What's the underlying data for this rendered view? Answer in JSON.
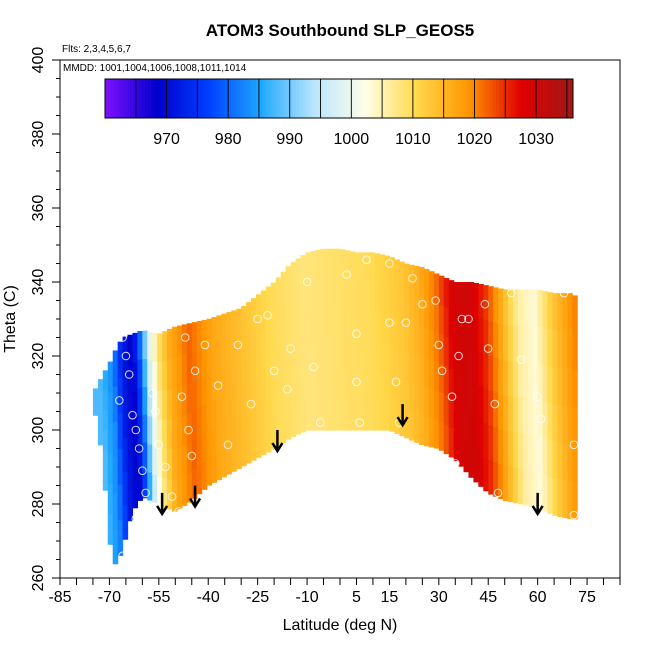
{
  "chart_data": {
    "type": "heatmap",
    "title": "ATOM3 Southbound SLP_GEOS5",
    "subtitle_flights": "Flts: 2,3,4,5,6,7",
    "subtitle_dates": "MMDD: 1001,1004,1006,1008,1011,1014",
    "xlabel": "Latitude (deg N)",
    "ylabel": "Theta (C)",
    "xlim": [
      -85,
      85
    ],
    "ylim": [
      260,
      400
    ],
    "x_ticks": [
      -85,
      -70,
      -55,
      -40,
      -25,
      -10,
      5,
      15,
      30,
      45,
      60,
      75
    ],
    "y_ticks": [
      260,
      280,
      300,
      320,
      340,
      360,
      380,
      400
    ],
    "colorbar": {
      "range": [
        960,
        1036
      ],
      "ticks": [
        970,
        980,
        990,
        1000,
        1010,
        1020,
        1030
      ],
      "colors": [
        "#7f10ff",
        "#0000cc",
        "#0040ff",
        "#1fa8ff",
        "#b8e4ff",
        "#ffffe8",
        "#ffd84a",
        "#ff9500",
        "#e00000",
        "#a01818"
      ]
    },
    "field_slp_by_latitude": {
      "lat": [
        -72,
        -68,
        -65,
        -62,
        -60,
        -57,
        -54,
        -51,
        -48,
        -45,
        -42,
        -38,
        -30,
        -20,
        -10,
        0,
        10,
        20,
        25,
        30,
        35,
        40,
        45,
        50,
        55,
        60,
        65,
        70,
        72
      ],
      "slp": [
        988,
        983,
        972,
        968,
        978,
        998,
        1009,
        1016,
        1019,
        1022,
        1020,
        1017,
        1014,
        1010,
        1008,
        1009,
        1010,
        1013,
        1016,
        1021,
        1029,
        1030,
        1025,
        1016,
        1006,
        1003,
        1012,
        1018,
        1020
      ]
    },
    "coverage_envelope": {
      "lat": [
        -75,
        -72,
        -70,
        -68,
        -66,
        -63,
        -60,
        -55,
        -50,
        -45,
        -40,
        -30,
        -20,
        -15,
        -10,
        -5,
        0,
        5,
        10,
        15,
        20,
        25,
        30,
        35,
        40,
        45,
        50,
        55,
        60,
        65,
        70,
        72
      ],
      "theta_top": [
        310,
        315,
        318,
        322,
        325,
        326,
        327,
        326,
        328,
        329,
        330,
        333,
        340,
        345,
        348,
        349,
        349,
        348,
        348,
        347,
        345,
        344,
        342,
        340,
        340,
        339,
        338,
        338,
        338,
        337,
        337,
        336
      ],
      "theta_bottom": [
        308,
        292,
        270,
        263,
        268,
        278,
        282,
        280,
        278,
        281,
        285,
        290,
        295,
        298,
        300,
        300,
        300,
        300,
        300,
        300,
        298,
        296,
        295,
        292,
        287,
        283,
        281,
        280,
        279,
        277,
        276,
        276
      ]
    },
    "observations": [
      {
        "lat": -66,
        "theta": 325
      },
      {
        "lat": -65,
        "theta": 320
      },
      {
        "lat": -64,
        "theta": 315
      },
      {
        "lat": -67,
        "theta": 308
      },
      {
        "lat": -63,
        "theta": 304
      },
      {
        "lat": -62,
        "theta": 300
      },
      {
        "lat": -61,
        "theta": 295
      },
      {
        "lat": -60,
        "theta": 289
      },
      {
        "lat": -59,
        "theta": 283
      },
      {
        "lat": -62,
        "theta": 276
      },
      {
        "lat": -66,
        "theta": 266
      },
      {
        "lat": -57,
        "theta": 310
      },
      {
        "lat": -56,
        "theta": 305
      },
      {
        "lat": -55,
        "theta": 296
      },
      {
        "lat": -53,
        "theta": 290
      },
      {
        "lat": -51,
        "theta": 282
      },
      {
        "lat": -49,
        "theta": 278
      },
      {
        "lat": -47,
        "theta": 325
      },
      {
        "lat": -44,
        "theta": 316
      },
      {
        "lat": -48,
        "theta": 309
      },
      {
        "lat": -46,
        "theta": 300
      },
      {
        "lat": -45,
        "theta": 293
      },
      {
        "lat": -41,
        "theta": 323
      },
      {
        "lat": -37,
        "theta": 312
      },
      {
        "lat": -34,
        "theta": 296
      },
      {
        "lat": -31,
        "theta": 323
      },
      {
        "lat": -27,
        "theta": 307
      },
      {
        "lat": -25,
        "theta": 330
      },
      {
        "lat": -22,
        "theta": 331
      },
      {
        "lat": -20,
        "theta": 316
      },
      {
        "lat": -16,
        "theta": 311
      },
      {
        "lat": -15,
        "theta": 322
      },
      {
        "lat": -10,
        "theta": 340
      },
      {
        "lat": -8,
        "theta": 317
      },
      {
        "lat": -6,
        "theta": 302
      },
      {
        "lat": 2,
        "theta": 342
      },
      {
        "lat": 5,
        "theta": 313
      },
      {
        "lat": 6,
        "theta": 302
      },
      {
        "lat": 5,
        "theta": 326
      },
      {
        "lat": 8,
        "theta": 346
      },
      {
        "lat": 15,
        "theta": 345
      },
      {
        "lat": 15,
        "theta": 329
      },
      {
        "lat": 17,
        "theta": 313
      },
      {
        "lat": 18,
        "theta": 302
      },
      {
        "lat": 20,
        "theta": 329
      },
      {
        "lat": 22,
        "theta": 341
      },
      {
        "lat": 25,
        "theta": 334
      },
      {
        "lat": 29,
        "theta": 335
      },
      {
        "lat": 30,
        "theta": 323
      },
      {
        "lat": 31,
        "theta": 316
      },
      {
        "lat": 34,
        "theta": 309
      },
      {
        "lat": 35,
        "theta": 291
      },
      {
        "lat": 36,
        "theta": 320
      },
      {
        "lat": 37,
        "theta": 330
      },
      {
        "lat": 39,
        "theta": 330
      },
      {
        "lat": 44,
        "theta": 334
      },
      {
        "lat": 45,
        "theta": 322
      },
      {
        "lat": 47,
        "theta": 307
      },
      {
        "lat": 48,
        "theta": 283
      },
      {
        "lat": 52,
        "theta": 337
      },
      {
        "lat": 55,
        "theta": 319
      },
      {
        "lat": 60,
        "theta": 309
      },
      {
        "lat": 61,
        "theta": 303
      },
      {
        "lat": 68,
        "theta": 337
      },
      {
        "lat": 71,
        "theta": 296
      },
      {
        "lat": 71,
        "theta": 277
      }
    ],
    "arrows": [
      {
        "lat": -54,
        "theta": 283
      },
      {
        "lat": -44,
        "theta": 285
      },
      {
        "lat": -19,
        "theta": 300
      },
      {
        "lat": 19,
        "theta": 307
      },
      {
        "lat": 60,
        "theta": 283
      }
    ]
  }
}
